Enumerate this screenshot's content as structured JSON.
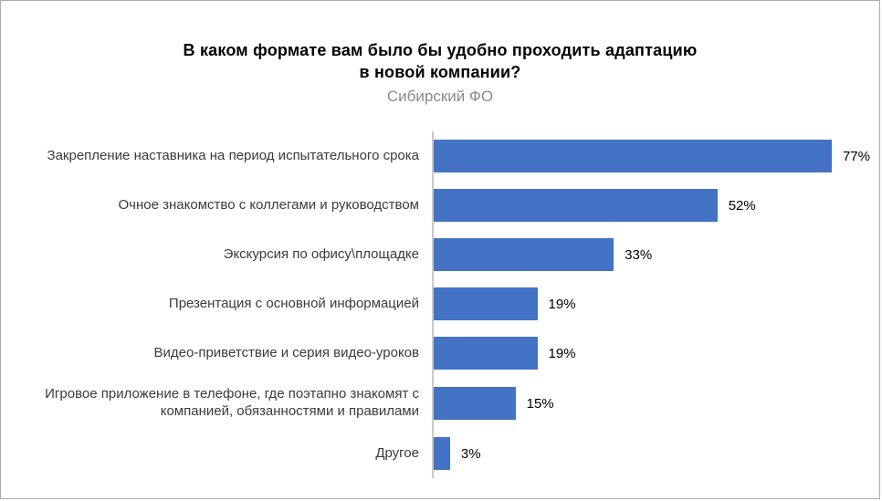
{
  "chart_data": {
    "type": "bar",
    "orientation": "horizontal",
    "title": "В каком формате вам было бы удобно проходить адаптацию\nв новой компании?",
    "subtitle": "Сибирский ФО",
    "categories": [
      "Закрепление наставника на период испытательного срока",
      "Очное знакомство с коллегами и руководством",
      "Экскурсия по офису\\площадке",
      "Презентация с основной информацией",
      "Видео-приветствие и серия видео-уроков",
      "Игровое приложение в телефоне, где поэтапно знакомят с компанией,  обязанностями и правилами",
      "Другое"
    ],
    "values": [
      77,
      52,
      33,
      19,
      19,
      15,
      3
    ],
    "value_labels": [
      "77%",
      "52%",
      "33%",
      "19%",
      "19%",
      "15%",
      "3%"
    ],
    "xlim": [
      0,
      80
    ],
    "bar_color": "#4472C4",
    "axis_line_color": "#C9C9C9",
    "grid": false,
    "legend": "none"
  }
}
